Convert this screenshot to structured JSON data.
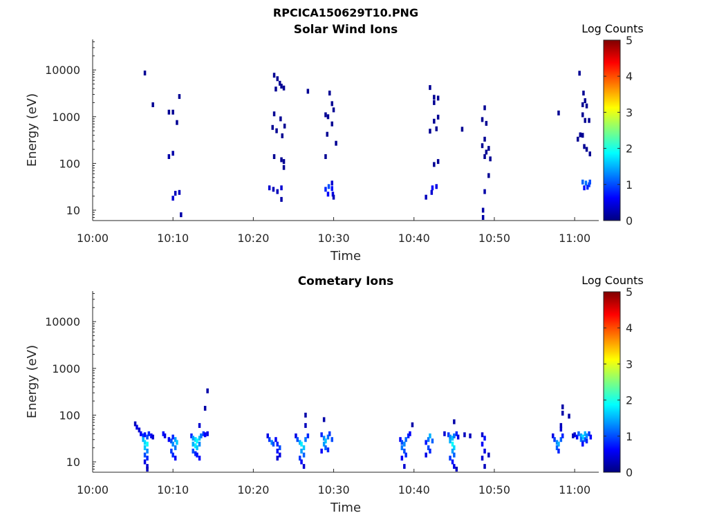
{
  "figure": {
    "title": "RPCICA150629T10.PNG"
  },
  "colorscale": {
    "label": "Log Counts",
    "ticks": [
      "0",
      "1",
      "2",
      "3",
      "4",
      "5"
    ],
    "min": 0,
    "max": 5,
    "colors": [
      "#00007f",
      "#0000ff",
      "#007fff",
      "#00ffff",
      "#7fff7f",
      "#ffff00",
      "#ff7f00",
      "#ff0000",
      "#7f0000"
    ]
  },
  "chart_data": [
    {
      "type": "heatmap",
      "title": "Solar Wind Ions",
      "xlabel": "Time",
      "ylabel": "Energy (eV)",
      "yscale": "log",
      "xlim": [
        "10:00",
        "11:03"
      ],
      "ylim": [
        6,
        45000
      ],
      "xticks": [
        "10:00",
        "10:10",
        "10:20",
        "10:30",
        "10:40",
        "10:50",
        "11:00"
      ],
      "yticks": [
        "10",
        "100",
        "1000",
        "10000"
      ],
      "points": [
        [
          "10:06.5",
          8600,
          0.1
        ],
        [
          "10:07.5",
          1800,
          0.1
        ],
        [
          "10:09.5",
          1250,
          0.1
        ],
        [
          "10:10.0",
          1250,
          0.1
        ],
        [
          "10:10.5",
          750,
          0.1
        ],
        [
          "10:10.8",
          2700,
          0.1
        ],
        [
          "10:09.5",
          140,
          0.2
        ],
        [
          "10:10.0",
          165,
          0.2
        ],
        [
          "10:10.0",
          18,
          0.4
        ],
        [
          "10:10.3",
          23,
          0.3
        ],
        [
          "10:10.8",
          24,
          0.3
        ],
        [
          "10:11.0",
          8,
          0.2
        ],
        [
          "10:22.0",
          30,
          0.4
        ],
        [
          "10:22.5",
          28,
          0.3
        ],
        [
          "10:23.0",
          25,
          0.3
        ],
        [
          "10:23.5",
          30,
          0.4
        ],
        [
          "10:23.5",
          17,
          0.2
        ],
        [
          "10:22.6",
          7700,
          0.1
        ],
        [
          "10:23.0",
          6500,
          0.1
        ],
        [
          "10:23.3",
          5200,
          0.1
        ],
        [
          "10:23.5",
          4500,
          0.1
        ],
        [
          "10:23.8",
          4100,
          0.1
        ],
        [
          "10:22.8",
          3900,
          0.1
        ],
        [
          "10:22.6",
          1150,
          0.1
        ],
        [
          "10:23.4",
          900,
          0.1
        ],
        [
          "10:23.9",
          630,
          0.1
        ],
        [
          "10:22.4",
          590,
          0.1
        ],
        [
          "10:22.9",
          500,
          0.1
        ],
        [
          "10:23.6",
          390,
          0.1
        ],
        [
          "10:22.6",
          140,
          0.1
        ],
        [
          "10:23.5",
          120,
          0.1
        ],
        [
          "10:23.8",
          110,
          0.1
        ],
        [
          "10:23.8",
          82,
          0.1
        ],
        [
          "10:26.8",
          3500,
          0.1
        ],
        [
          "10:29.0",
          28,
          0.8
        ],
        [
          "10:29.4",
          32,
          1.0
        ],
        [
          "10:29.8",
          29,
          0.7
        ],
        [
          "10:29.3",
          22,
          0.6
        ],
        [
          "10:29.9",
          22,
          0.5
        ],
        [
          "10:30.0",
          19,
          0.3
        ],
        [
          "10:29.8",
          38,
          0.4
        ],
        [
          "10:29.5",
          3200,
          0.1
        ],
        [
          "10:29.8",
          1900,
          0.1
        ],
        [
          "10:30.0",
          1400,
          0.1
        ],
        [
          "10:29.0",
          1100,
          0.1
        ],
        [
          "10:29.3",
          1000,
          0.1
        ],
        [
          "10:29.8",
          700,
          0.1
        ],
        [
          "10:29.2",
          420,
          0.1
        ],
        [
          "10:30.3",
          270,
          0.1
        ],
        [
          "10:29.0",
          140,
          0.1
        ],
        [
          "10:42.0",
          4200,
          0.1
        ],
        [
          "10:42.5",
          2600,
          0.1
        ],
        [
          "10:43.0",
          2500,
          0.1
        ],
        [
          "10:42.5",
          2000,
          0.1
        ],
        [
          "10:43.0",
          980,
          0.1
        ],
        [
          "10:42.5",
          800,
          0.1
        ],
        [
          "10:42.8",
          550,
          0.1
        ],
        [
          "10:42.0",
          490,
          0.1
        ],
        [
          "10:43.0",
          110,
          0.1
        ],
        [
          "10:42.5",
          95,
          0.1
        ],
        [
          "10:46.0",
          540,
          0.1
        ],
        [
          "10:42.3",
          30,
          0.6
        ],
        [
          "10:42.8",
          32,
          0.5
        ],
        [
          "10:42.2",
          24,
          0.4
        ],
        [
          "10:41.5",
          19,
          0.3
        ],
        [
          "10:48.8",
          1550,
          0.1
        ],
        [
          "10:48.5",
          870,
          0.1
        ],
        [
          "10:49.0",
          720,
          0.1
        ],
        [
          "10:48.8",
          330,
          0.1
        ],
        [
          "10:48.5",
          240,
          0.1
        ],
        [
          "10:49.3",
          210,
          0.1
        ],
        [
          "10:49.0",
          175,
          0.1
        ],
        [
          "10:48.8",
          140,
          0.1
        ],
        [
          "10:49.5",
          125,
          0.1
        ],
        [
          "10:49.3",
          55,
          0.1
        ],
        [
          "10:48.8",
          25,
          0.2
        ],
        [
          "10:48.6",
          10,
          0.2
        ],
        [
          "10:48.6",
          7,
          0.2
        ],
        [
          "10:58.0",
          1200,
          0.1
        ],
        [
          "11:00.6",
          8500,
          0.1
        ],
        [
          "11:01.1",
          3200,
          0.1
        ],
        [
          "11:01.3",
          2200,
          0.1
        ],
        [
          "11:01.0",
          1800,
          0.1
        ],
        [
          "11:01.5",
          1700,
          0.1
        ],
        [
          "11:01.0",
          1100,
          0.1
        ],
        [
          "11:01.3",
          830,
          0.1
        ],
        [
          "11:01.8",
          830,
          0.1
        ],
        [
          "11:00.7",
          410,
          0.1
        ],
        [
          "11:01.0",
          400,
          0.1
        ],
        [
          "11:00.4",
          330,
          0.1
        ],
        [
          "11:01.2",
          230,
          0.1
        ],
        [
          "11:01.5",
          200,
          0.1
        ],
        [
          "11:01.9",
          160,
          0.1
        ],
        [
          "11:01.0",
          40,
          1.1
        ],
        [
          "11:01.4",
          38,
          1.2
        ],
        [
          "11:01.8",
          35,
          0.9
        ],
        [
          "11:01.2",
          30,
          0.7
        ],
        [
          "11:01.6",
          31,
          0.8
        ],
        [
          "11:01.9",
          40,
          1.0
        ]
      ]
    },
    {
      "type": "heatmap",
      "title": "Cometary Ions",
      "xlabel": "Time",
      "ylabel": "Energy (eV)",
      "yscale": "log",
      "xlim": [
        "10:00",
        "11:03"
      ],
      "ylim": [
        6,
        45000
      ],
      "xticks": [
        "10:00",
        "10:10",
        "10:20",
        "10:30",
        "10:40",
        "10:50",
        "11:00"
      ],
      "yticks": [
        "10",
        "100",
        "1000",
        "10000"
      ],
      "points": [
        [
          "10:05.3",
          65,
          0.3
        ],
        [
          "10:05.5",
          55,
          0.5
        ],
        [
          "10:05.8",
          48,
          0.4
        ],
        [
          "10:06.0",
          40,
          0.6
        ],
        [
          "10:06.3",
          36,
          0.9
        ],
        [
          "10:06.5",
          38,
          0.7
        ],
        [
          "10:06.8",
          34,
          1.0
        ],
        [
          "10:07.0",
          40,
          0.8
        ],
        [
          "10:07.3",
          36,
          0.6
        ],
        [
          "10:07.5",
          34,
          0.4
        ],
        [
          "10:06.3",
          30,
          1.5
        ],
        [
          "10:06.5",
          26,
          1.7
        ],
        [
          "10:06.8",
          24,
          1.9
        ],
        [
          "10:06.5",
          20,
          1.6
        ],
        [
          "10:06.8",
          17,
          1.3
        ],
        [
          "10:06.5",
          14,
          1.0
        ],
        [
          "10:06.8",
          12,
          0.8
        ],
        [
          "10:06.5",
          10,
          0.5
        ],
        [
          "10:06.8",
          8,
          0.4
        ],
        [
          "10:06.8",
          7,
          0.3
        ],
        [
          "10:08.8",
          40,
          0.7
        ],
        [
          "10:09.0",
          36,
          0.5
        ],
        [
          "10:09.5",
          30,
          0.6
        ],
        [
          "10:09.8",
          28,
          1.0
        ],
        [
          "10:10.0",
          34,
          0.8
        ],
        [
          "10:10.3",
          30,
          1.4
        ],
        [
          "10:10.5",
          26,
          1.6
        ],
        [
          "10:10.0",
          24,
          1.3
        ],
        [
          "10:10.3",
          20,
          1.2
        ],
        [
          "10:09.8",
          17,
          0.9
        ],
        [
          "10:10.0",
          14,
          0.8
        ],
        [
          "10:10.3",
          12,
          0.6
        ],
        [
          "10:12.3",
          36,
          0.8
        ],
        [
          "10:12.5",
          32,
          1.4
        ],
        [
          "10:12.8",
          30,
          1.7
        ],
        [
          "10:13.0",
          28,
          1.9
        ],
        [
          "10:13.3",
          32,
          1.6
        ],
        [
          "10:13.5",
          36,
          1.2
        ],
        [
          "10:13.8",
          40,
          0.9
        ],
        [
          "10:14.0",
          38,
          0.6
        ],
        [
          "10:14.3",
          40,
          0.5
        ],
        [
          "10:12.5",
          24,
          1.5
        ],
        [
          "10:12.8",
          22,
          1.8
        ],
        [
          "10:13.0",
          20,
          1.6
        ],
        [
          "10:13.3",
          24,
          1.3
        ],
        [
          "10:12.5",
          17,
          1.0
        ],
        [
          "10:12.8",
          15,
          0.8
        ],
        [
          "10:13.0",
          14,
          0.7
        ],
        [
          "10:13.3",
          12,
          0.6
        ],
        [
          "10:13.3",
          60,
          0.4
        ],
        [
          "10:14.0",
          140,
          0.2
        ],
        [
          "10:14.3",
          330,
          0.2
        ],
        [
          "10:21.8",
          36,
          0.5
        ],
        [
          "10:22.0",
          30,
          0.9
        ],
        [
          "10:22.3",
          26,
          1.3
        ],
        [
          "10:22.5",
          24,
          1.0
        ],
        [
          "10:22.8",
          30,
          0.6
        ],
        [
          "10:23.0",
          24,
          0.8
        ],
        [
          "10:23.3",
          20,
          1.0
        ],
        [
          "10:23.0",
          17,
          0.7
        ],
        [
          "10:23.3",
          14,
          0.5
        ],
        [
          "10:23.0",
          12,
          0.4
        ],
        [
          "10:25.3",
          36,
          0.5
        ],
        [
          "10:25.5",
          30,
          1.0
        ],
        [
          "10:25.8",
          26,
          1.5
        ],
        [
          "10:26.0",
          24,
          1.8
        ],
        [
          "10:26.3",
          20,
          1.6
        ],
        [
          "10:26.5",
          30,
          1.2
        ],
        [
          "10:26.8",
          36,
          0.8
        ],
        [
          "10:26.0",
          17,
          1.4
        ],
        [
          "10:26.3",
          14,
          1.1
        ],
        [
          "10:25.8",
          12,
          0.9
        ],
        [
          "10:26.0",
          10,
          0.6
        ],
        [
          "10:26.3",
          8,
          0.4
        ],
        [
          "10:26.5",
          60,
          0.3
        ],
        [
          "10:26.5",
          100,
          0.2
        ],
        [
          "10:28.8",
          80,
          0.2
        ],
        [
          "10:28.5",
          38,
          0.8
        ],
        [
          "10:28.8",
          32,
          1.3
        ],
        [
          "10:29.0",
          28,
          1.6
        ],
        [
          "10:29.3",
          34,
          1.2
        ],
        [
          "10:29.5",
          40,
          0.9
        ],
        [
          "10:29.8",
          30,
          1.0
        ],
        [
          "10:28.8",
          24,
          1.4
        ],
        [
          "10:29.0",
          20,
          1.1
        ],
        [
          "10:29.3",
          18,
          0.8
        ],
        [
          "10:28.5",
          17,
          0.6
        ],
        [
          "10:38.3",
          30,
          0.6
        ],
        [
          "10:38.5",
          26,
          1.0
        ],
        [
          "10:38.8",
          24,
          1.3
        ],
        [
          "10:39.0",
          30,
          1.1
        ],
        [
          "10:39.3",
          36,
          0.8
        ],
        [
          "10:39.5",
          40,
          0.6
        ],
        [
          "10:38.5",
          20,
          1.2
        ],
        [
          "10:38.8",
          17,
          1.0
        ],
        [
          "10:39.0",
          14,
          0.8
        ],
        [
          "10:38.5",
          12,
          0.6
        ],
        [
          "10:38.8",
          8,
          0.4
        ],
        [
          "10:39.8",
          62,
          0.2
        ],
        [
          "10:41.5",
          26,
          0.7
        ],
        [
          "10:41.8",
          30,
          1.2
        ],
        [
          "10:42.0",
          36,
          1.5
        ],
        [
          "10:42.3",
          28,
          1.1
        ],
        [
          "10:41.8",
          20,
          1.0
        ],
        [
          "10:42.0",
          17,
          0.8
        ],
        [
          "10:41.5",
          14,
          0.5
        ],
        [
          "10:43.8",
          40,
          0.4
        ],
        [
          "10:44.3",
          38,
          0.9
        ],
        [
          "10:44.5",
          34,
          1.3
        ],
        [
          "10:44.8",
          32,
          1.6
        ],
        [
          "10:45.0",
          36,
          1.2
        ],
        [
          "10:45.3",
          40,
          0.8
        ],
        [
          "10:45.5",
          34,
          0.5
        ],
        [
          "10:44.5",
          28,
          1.5
        ],
        [
          "10:44.8",
          24,
          1.9
        ],
        [
          "10:45.0",
          20,
          1.7
        ],
        [
          "10:44.8",
          17,
          1.4
        ],
        [
          "10:45.0",
          14,
          1.1
        ],
        [
          "10:44.5",
          12,
          0.9
        ],
        [
          "10:44.8",
          10,
          0.7
        ],
        [
          "10:45.0",
          8,
          0.5
        ],
        [
          "10:45.3",
          7,
          0.3
        ],
        [
          "10:45.0",
          72,
          0.2
        ],
        [
          "10:46.3",
          38,
          0.3
        ],
        [
          "10:47.0",
          36,
          0.3
        ],
        [
          "10:48.5",
          38,
          0.4
        ],
        [
          "10:48.8",
          32,
          0.7
        ],
        [
          "10:48.5",
          24,
          0.6
        ],
        [
          "10:48.8",
          17,
          0.5
        ],
        [
          "10:48.5",
          12,
          0.4
        ],
        [
          "10:48.8",
          8,
          0.3
        ],
        [
          "10:49.3",
          14,
          0.3
        ],
        [
          "10:57.3",
          36,
          0.5
        ],
        [
          "10:57.5",
          30,
          0.9
        ],
        [
          "10:57.8",
          26,
          1.3
        ],
        [
          "10:58.0",
          24,
          1.5
        ],
        [
          "10:58.3",
          30,
          1.1
        ],
        [
          "10:58.5",
          36,
          0.8
        ],
        [
          "10:57.8",
          20,
          1.1
        ],
        [
          "10:58.0",
          17,
          0.8
        ],
        [
          "10:58.3",
          50,
          0.4
        ],
        [
          "10:58.3",
          60,
          0.3
        ],
        [
          "10:58.5",
          150,
          0.2
        ],
        [
          "10:58.5",
          110,
          0.2
        ],
        [
          "10:59.3",
          95,
          0.2
        ],
        [
          "10:59.8",
          36,
          0.3
        ],
        [
          "11:00.0",
          38,
          0.4
        ],
        [
          "11:00.3",
          34,
          0.6
        ],
        [
          "11:00.5",
          40,
          1.1
        ],
        [
          "11:00.8",
          36,
          1.4
        ],
        [
          "11:01.0",
          34,
          1.7
        ],
        [
          "11:01.3",
          40,
          1.5
        ],
        [
          "11:01.5",
          36,
          1.3
        ],
        [
          "11:01.8",
          40,
          0.9
        ],
        [
          "11:02.0",
          34,
          0.6
        ],
        [
          "11:00.8",
          30,
          1.2
        ],
        [
          "11:01.0",
          26,
          1.0
        ],
        [
          "11:01.3",
          30,
          1.1
        ],
        [
          "11:01.5",
          28,
          0.8
        ],
        [
          "11:01.0",
          24,
          0.6
        ]
      ]
    }
  ]
}
